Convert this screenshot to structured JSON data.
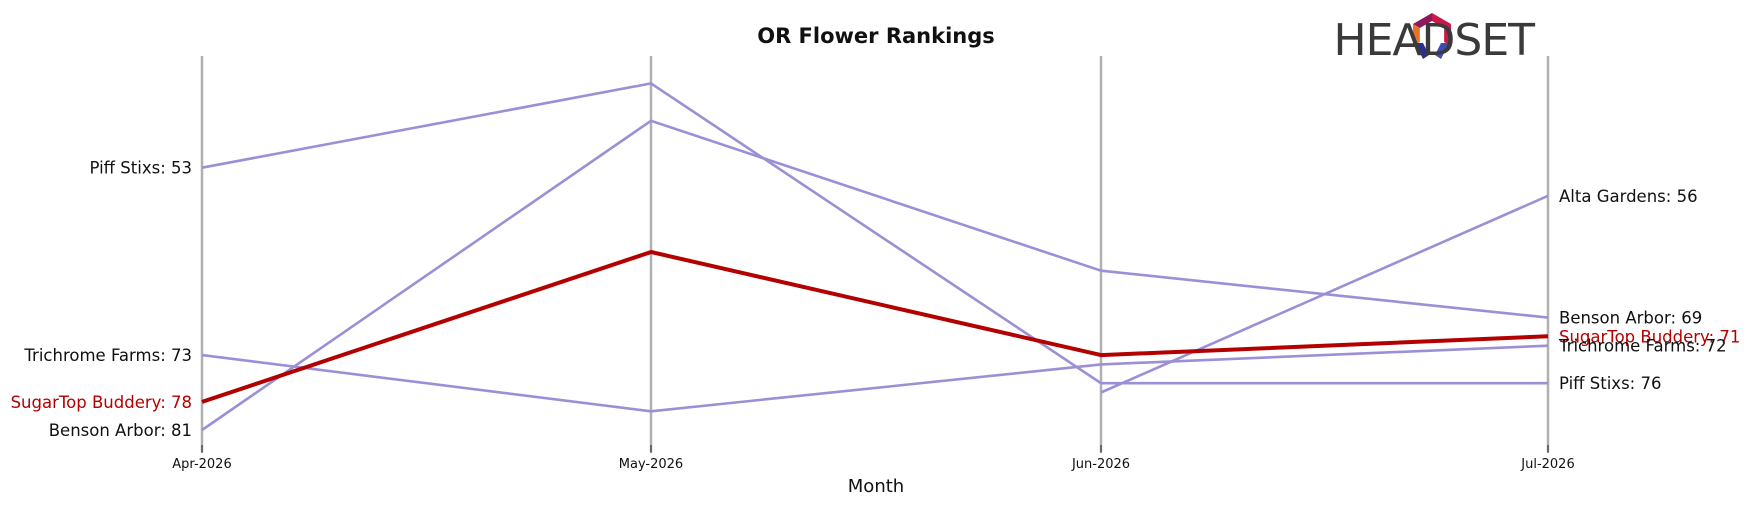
{
  "chart_data": {
    "type": "line",
    "title": "OR Flower Rankings",
    "xlabel": "Month",
    "ylabel": "",
    "x": [
      "Apr-2026",
      "May-2026",
      "Jun-2026",
      "Jul-2026"
    ],
    "y_inverted": true,
    "ylim": [
      43,
      81
    ],
    "grid": "vertical lines at each month",
    "legend": "none; series labeled at line ends",
    "highlight_color": "#b30000",
    "other_color": "#9b8fd6",
    "axis_line_color": "#b0b0b0",
    "series": [
      {
        "name": "Piff Stixs",
        "values": [
          53,
          44,
          76,
          76
        ],
        "highlight": false
      },
      {
        "name": "Trichrome Farms",
        "values": [
          73,
          79,
          74,
          72
        ],
        "highlight": false
      },
      {
        "name": "SugarTop Buddery",
        "values": [
          78,
          62,
          73,
          71
        ],
        "highlight": true
      },
      {
        "name": "Benson Arbor",
        "values": [
          81,
          48,
          64,
          69
        ],
        "highlight": false
      },
      {
        "name": "Alta Gardens",
        "values": [
          null,
          null,
          77,
          56
        ],
        "highlight": false
      }
    ],
    "start_labels": [
      {
        "series": "Piff Stixs",
        "text": "Piff Stixs: 53",
        "value": 53
      },
      {
        "series": "Trichrome Farms",
        "text": "Trichrome Farms: 73",
        "value": 73
      },
      {
        "series": "SugarTop Buddery",
        "text": "SugarTop Buddery: 78",
        "value": 78
      },
      {
        "series": "Benson Arbor",
        "text": "Benson Arbor: 81",
        "value": 81
      }
    ],
    "end_labels": [
      {
        "series": "Alta Gardens",
        "text": "Alta Gardens: 56",
        "value": 56
      },
      {
        "series": "Benson Arbor",
        "text": "Benson Arbor: 69",
        "value": 69
      },
      {
        "series": "SugarTop Buddery",
        "text": "SugarTop Buddery: 71",
        "value": 71
      },
      {
        "series": "Trichrome Farms",
        "text": "Trichrome Farms: 72",
        "value": 72
      },
      {
        "series": "Piff Stixs",
        "text": "Piff Stixs: 76",
        "value": 76
      }
    ]
  },
  "logo": {
    "text": "HEADSET",
    "icon": "headset-hexagon-logo-icon",
    "colors": [
      "#e8722a",
      "#c9184a",
      "#8e1a5e",
      "#2b2d8f",
      "#3f4bb5"
    ]
  }
}
